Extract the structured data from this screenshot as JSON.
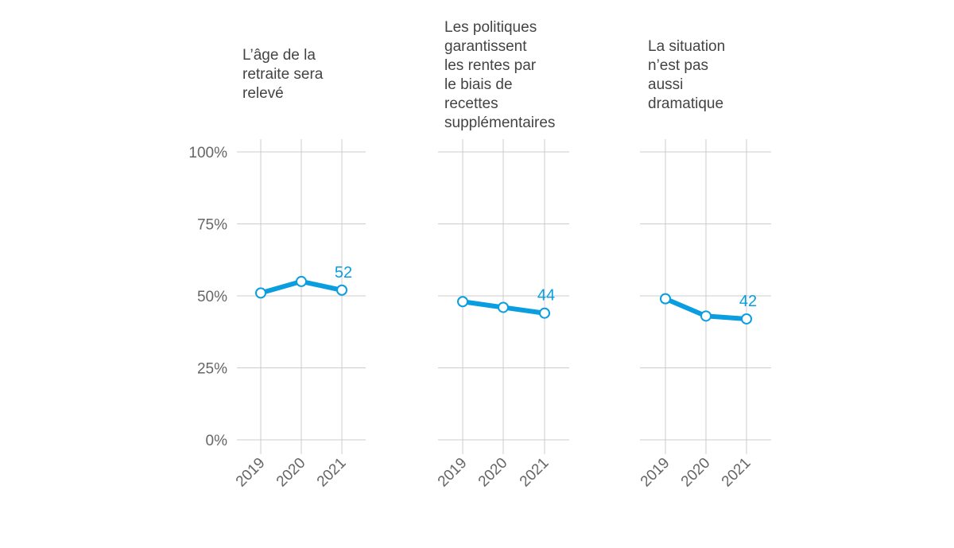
{
  "chart_data": [
    {
      "type": "line",
      "title_lines": [
        "L’âge de la",
        "retraite sera",
        "relevé"
      ],
      "x": [
        "2019",
        "2020",
        "2021"
      ],
      "values": [
        51,
        55,
        52
      ],
      "end_label": "52",
      "ylim": [
        0,
        100
      ],
      "yticks": [
        "0%",
        "25%",
        "50%",
        "75%",
        "100%"
      ],
      "grid": true
    },
    {
      "type": "line",
      "title_lines": [
        "Les politiques",
        "garantissent",
        "les rentes par",
        "le biais de",
        "recettes",
        "supplémentaires"
      ],
      "x": [
        "2019",
        "2020",
        "2021"
      ],
      "values": [
        48,
        46,
        44
      ],
      "end_label": "44",
      "ylim": [
        0,
        100
      ],
      "yticks": [],
      "grid": true
    },
    {
      "type": "line",
      "title_lines": [
        "La situation",
        "n’est pas",
        "aussi",
        "dramatique"
      ],
      "x": [
        "2019",
        "2020",
        "2021"
      ],
      "values": [
        49,
        43,
        42
      ],
      "end_label": "42",
      "ylim": [
        0,
        100
      ],
      "yticks": [],
      "grid": true
    }
  ],
  "colors": {
    "series": "#0a9ee0",
    "label": "#0a9ee0"
  }
}
